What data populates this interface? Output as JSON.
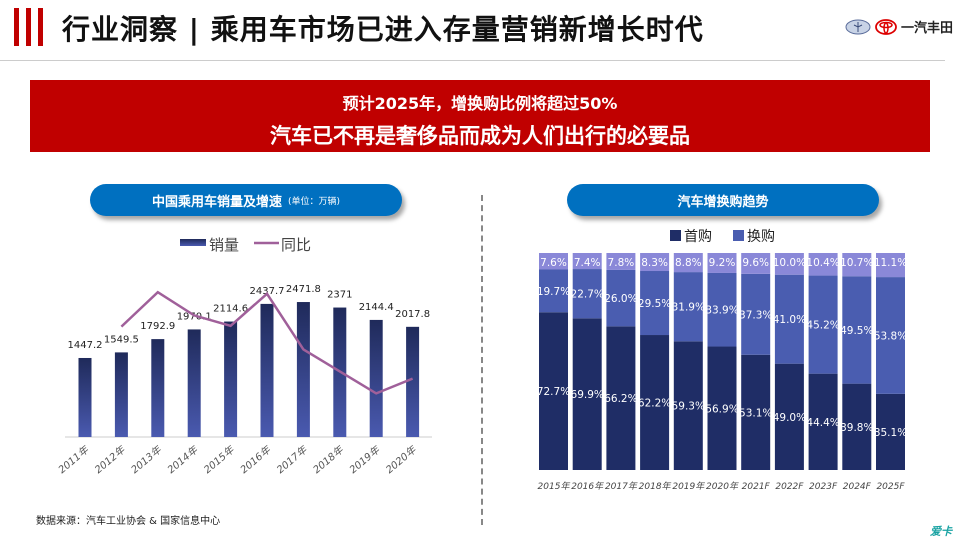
{
  "header": {
    "title": "行业洞察 | 乘用车市场已进入存量营销新增长时代",
    "logo_text": "一汽丰田"
  },
  "banner": {
    "line1": "预计2025年，增换购比例将超过50%",
    "line2": "汽车已不再是奢侈品而成为人们出行的必要品"
  },
  "left_panel": {
    "title": "中国乘用车销量及增速",
    "unit": "(单位：万辆)"
  },
  "right_panel": {
    "title": "汽车增换购趋势"
  },
  "source": "数据来源：汽车工业协会 & 国家信息中心",
  "watermark": "爱卡",
  "chart_data": [
    {
      "type": "bar+line",
      "categories": [
        "2011年",
        "2012年",
        "2013年",
        "2014年",
        "2015年",
        "2016年",
        "2017年",
        "2018年",
        "2019年",
        "2020年"
      ],
      "series": [
        {
          "name": "销量",
          "type": "bar",
          "values": [
            1447.2,
            1549.5,
            1792.9,
            1970.1,
            2114.6,
            2437.7,
            2471.8,
            2371,
            2144.4,
            2017.8
          ],
          "labels": [
            "1447.2",
            "1549.5",
            "1792.9",
            "1970.1",
            "2114.6",
            "2437.7",
            "2471.8",
            "2371",
            "2144.4",
            "2017.8"
          ]
        },
        {
          "name": "同比",
          "type": "line",
          "values": [
            null,
            7.1,
            15.7,
            9.9,
            7.3,
            15.3,
            1.4,
            -4.1,
            -9.6,
            -5.9
          ]
        }
      ],
      "legend": "top",
      "colors": {
        "bar": "#2f3f80",
        "line": "#a0609a"
      }
    },
    {
      "type": "stacked-bar",
      "categories": [
        "2015年",
        "2016年",
        "2017年",
        "2018年",
        "2019年",
        "2020年",
        "2021F",
        "2022F",
        "2023F",
        "2024F",
        "2025F"
      ],
      "series": [
        {
          "name": "首购",
          "values": [
            72.7,
            69.9,
            66.2,
            62.2,
            59.3,
            56.9,
            53.1,
            49.0,
            44.4,
            39.8,
            35.1
          ]
        },
        {
          "name": "换购",
          "values": [
            19.7,
            22.7,
            26.0,
            29.5,
            31.9,
            33.9,
            37.3,
            41.0,
            45.2,
            49.5,
            53.8
          ]
        },
        {
          "values": [
            7.6,
            7.4,
            7.8,
            8.3,
            8.8,
            9.2,
            9.6,
            10.0,
            10.4,
            10.7,
            11.1
          ]
        }
      ],
      "legend": "top",
      "colors": [
        "#1f2d66",
        "#4a5db0",
        "#8a88d8"
      ]
    }
  ]
}
